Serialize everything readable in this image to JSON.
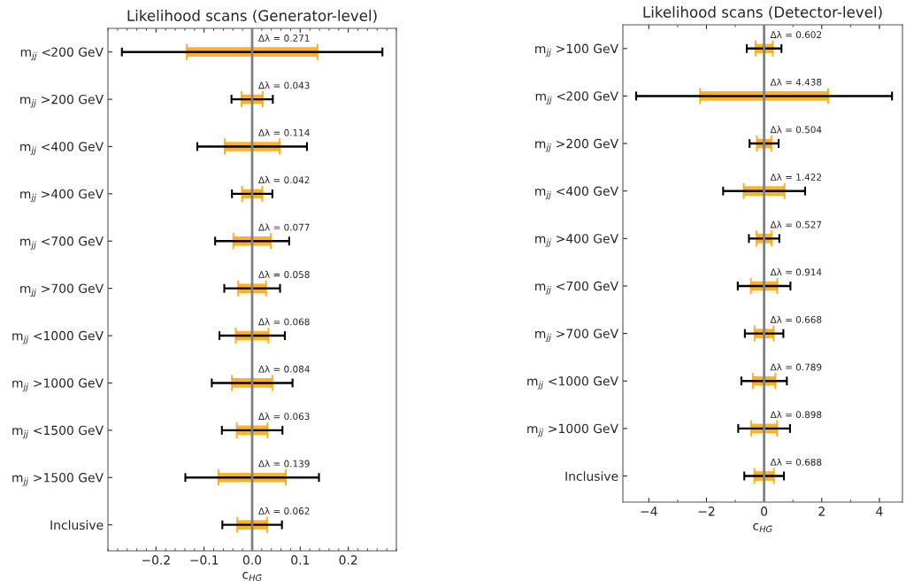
{
  "chart_data": [
    {
      "type": "bar",
      "orientation": "horizontal",
      "title": "Likelihood scans (Generator-level)",
      "xlabel": "c$_{HG̃}$",
      "categories": [
        "m$_{jj}$ <200 GeV",
        "m$_{jj}$ >200 GeV",
        "m$_{jj}$ <400 GeV",
        "m$_{jj}$ >400 GeV",
        "m$_{jj}$ <700 GeV",
        "m$_{jj}$ >700 GeV",
        "m$_{jj}$ <1000 GeV",
        "m$_{jj}$ >1000 GeV",
        "m$_{jj}$ <1500 GeV",
        "m$_{jj}$ >1500 GeV",
        "Inclusive"
      ],
      "series": [
        {
          "color": "#000000",
          "base": [
            -0.271,
            -0.043,
            -0.114,
            -0.042,
            -0.077,
            -0.058,
            -0.068,
            -0.084,
            -0.063,
            -0.139,
            -0.062
          ],
          "values": [
            0.542,
            0.086,
            0.228,
            0.084,
            0.154,
            0.116,
            0.136,
            0.168,
            0.126,
            0.278,
            0.124
          ]
        },
        {
          "color": "#ffa500",
          "base": [
            -0.136,
            -0.022,
            -0.057,
            -0.021,
            -0.039,
            -0.029,
            -0.034,
            -0.042,
            -0.032,
            -0.07,
            -0.031
          ],
          "values": [
            0.272,
            0.044,
            0.114,
            0.042,
            0.078,
            0.058,
            0.068,
            0.084,
            0.064,
            0.14,
            0.062
          ]
        }
      ],
      "xlim": [
        -0.3,
        0.3
      ],
      "xticks": [
        {
          "value": -0.2,
          "label": "−0.2"
        },
        {
          "value": -0.1,
          "label": "−0.1"
        },
        {
          "value": 0,
          "label": "0.0"
        },
        {
          "value": 0.1,
          "label": "0.1"
        },
        {
          "value": 0.2,
          "label": "0.2"
        }
      ],
      "ref_lines": [
        {
          "axis": "x",
          "value": 0,
          "color": "#808080"
        }
      ],
      "annotations": [
        "Δλ = 0.271",
        "Δλ = 0.043",
        "Δλ = 0.114",
        "Δλ = 0.042",
        "Δλ = 0.077",
        "Δλ = 0.058",
        "Δλ = 0.068",
        "Δλ = 0.084",
        "Δλ = 0.063",
        "Δλ = 0.139",
        "Δλ = 0.062"
      ]
    },
    {
      "type": "bar",
      "orientation": "horizontal",
      "title": "Likelihood scans (Detector-level)",
      "xlabel": "c$_{HG̃}$",
      "categories": [
        "m$_{jj}$ >100 GeV",
        "m$_{jj}$ <200 GeV",
        "m$_{jj}$ >200 GeV",
        "m$_{jj}$ <400 GeV",
        "m$_{jj}$ >400 GeV",
        "m$_{jj}$ <700 GeV",
        "m$_{jj}$ >700 GeV",
        "m$_{jj}$ <1000 GeV",
        "m$_{jj}$ >1000 GeV",
        "Inclusive"
      ],
      "series": [
        {
          "color": "#000000",
          "base": [
            -0.602,
            -4.438,
            -0.504,
            -1.422,
            -0.527,
            -0.914,
            -0.668,
            -0.789,
            -0.898,
            -0.688
          ],
          "values": [
            1.204,
            8.876,
            1.008,
            2.844,
            1.054,
            1.828,
            1.336,
            1.578,
            1.796,
            1.376
          ]
        },
        {
          "color": "#ffa500",
          "base": [
            -0.3,
            -2.22,
            -0.25,
            -0.71,
            -0.26,
            -0.46,
            -0.33,
            -0.39,
            -0.45,
            -0.34
          ],
          "values": [
            0.6,
            4.44,
            0.5,
            1.42,
            0.52,
            0.92,
            0.66,
            0.78,
            0.9,
            0.68
          ]
        }
      ],
      "xlim": [
        -4.9,
        4.8
      ],
      "xticks": [
        {
          "value": -4,
          "label": "−4"
        },
        {
          "value": -2,
          "label": "−2"
        },
        0,
        2,
        4
      ],
      "ref_lines": [
        {
          "axis": "x",
          "value": 0,
          "color": "#808080"
        }
      ],
      "annotations": [
        "Δλ = 0.602",
        "Δλ = 4.438",
        "Δλ = 0.504",
        "Δλ = 1.422",
        "Δλ = 0.527",
        "Δλ = 0.914",
        "Δλ = 0.668",
        "Δλ = 0.789",
        "Δλ = 0.898",
        "Δλ = 0.688"
      ]
    }
  ]
}
